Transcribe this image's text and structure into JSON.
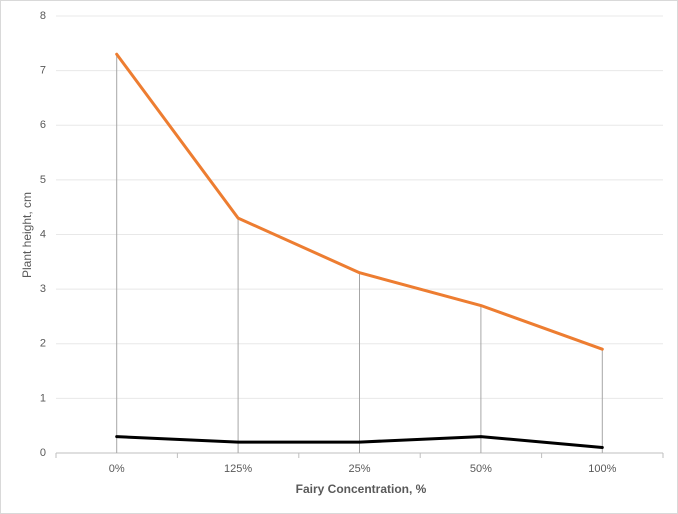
{
  "chart_data": {
    "type": "line",
    "x_label": "Fairy Concentration, %",
    "y_label": "Plant height, cm",
    "categories": [
      "0%",
      "125%",
      "25%",
      "50%",
      "100%"
    ],
    "series": [
      {
        "color": "#ed7d31",
        "values": [
          7.3,
          4.3,
          3.3,
          2.7,
          1.9
        ]
      },
      {
        "color": "#000000",
        "values": [
          0.3,
          0.2,
          0.2,
          0.3,
          0.1
        ]
      }
    ],
    "ylim": [
      0,
      8
    ],
    "yticks": [
      0,
      1,
      2,
      3,
      4,
      5,
      6,
      7,
      8
    ],
    "grid": true,
    "drop_lines": true
  }
}
